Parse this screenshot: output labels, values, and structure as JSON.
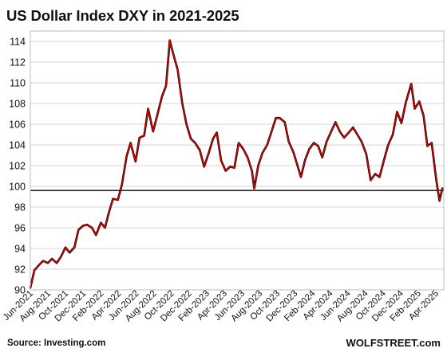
{
  "title": "US Dollar Index DXY in 2021-2025",
  "source": "Source: Investing.com",
  "brand": "WOLFSTREET.com",
  "chart_data": {
    "type": "line",
    "title": "US Dollar Index DXY in 2021-2025",
    "xlabel": "",
    "ylabel": "",
    "ylim": [
      90,
      115
    ],
    "yticks": [
      90,
      92,
      94,
      96,
      98,
      100,
      102,
      104,
      106,
      108,
      110,
      112,
      114
    ],
    "xtick_labels": [
      "Jun-2021",
      "Aug-2021",
      "Oct-2021",
      "Dec-2021",
      "Feb-2022",
      "Apr-2022",
      "Jun-2022",
      "Aug-2022",
      "Oct-2022",
      "Dec-2022",
      "Feb-2023",
      "Apr-2023",
      "Jun-2023",
      "Aug-2023",
      "Oct-2023",
      "Dec-2023",
      "Feb-2024",
      "Apr-2024",
      "Jun-2024",
      "Aug-2024",
      "Oct-2024",
      "Dec-2024",
      "Feb-2025",
      "Apr-2025"
    ],
    "grid": true,
    "line_color": "#e00000",
    "reference_line": 99.6,
    "series": [
      {
        "x": [
          "2021-06-01",
          "2021-06-15",
          "2021-07-01",
          "2021-07-15",
          "2021-08-01",
          "2021-08-15",
          "2021-09-01",
          "2021-09-15",
          "2021-10-01",
          "2021-10-15",
          "2021-11-01",
          "2021-11-15",
          "2021-12-01",
          "2021-12-15",
          "2022-01-01",
          "2022-01-15",
          "2022-02-01",
          "2022-02-15",
          "2022-03-01",
          "2022-03-15",
          "2022-04-01",
          "2022-04-15",
          "2022-05-01",
          "2022-05-15",
          "2022-06-01",
          "2022-06-15",
          "2022-07-01",
          "2022-07-15",
          "2022-08-01",
          "2022-08-15",
          "2022-09-01",
          "2022-09-15",
          "2022-09-28",
          "2022-10-10",
          "2022-10-25",
          "2022-11-10",
          "2022-11-25",
          "2022-12-10",
          "2022-12-25",
          "2023-01-10",
          "2023-01-25",
          "2023-02-10",
          "2023-02-25",
          "2023-03-10",
          "2023-03-25",
          "2023-04-10",
          "2023-04-25",
          "2023-05-10",
          "2023-05-25",
          "2023-06-10",
          "2023-06-25",
          "2023-07-10",
          "2023-07-18",
          "2023-08-01",
          "2023-08-15",
          "2023-09-01",
          "2023-09-15",
          "2023-10-01",
          "2023-10-15",
          "2023-11-01",
          "2023-11-15",
          "2023-12-01",
          "2023-12-27",
          "2024-01-10",
          "2024-01-25",
          "2024-02-10",
          "2024-02-25",
          "2024-03-10",
          "2024-03-25",
          "2024-04-10",
          "2024-04-25",
          "2024-05-10",
          "2024-05-25",
          "2024-06-10",
          "2024-06-25",
          "2024-07-10",
          "2024-07-25",
          "2024-08-10",
          "2024-08-25",
          "2024-09-10",
          "2024-09-25",
          "2024-10-10",
          "2024-10-25",
          "2024-11-10",
          "2024-11-25",
          "2024-12-10",
          "2024-12-25",
          "2025-01-13",
          "2025-01-25",
          "2025-02-10",
          "2025-02-25",
          "2025-03-10",
          "2025-03-25",
          "2025-04-10",
          "2025-04-21",
          "2025-05-01"
        ],
        "values": [
          90.2,
          91.9,
          92.4,
          92.8,
          92.6,
          93.0,
          92.6,
          93.2,
          94.1,
          93.6,
          94.1,
          95.8,
          96.2,
          96.3,
          96.0,
          95.3,
          96.5,
          96.0,
          97.5,
          98.8,
          98.7,
          100.2,
          102.9,
          104.2,
          102.4,
          104.7,
          104.9,
          107.5,
          105.3,
          106.8,
          108.7,
          109.7,
          114.1,
          112.8,
          111.3,
          108.1,
          106.0,
          104.6,
          104.2,
          103.5,
          101.9,
          103.2,
          104.6,
          105.2,
          102.5,
          101.5,
          101.9,
          101.8,
          104.2,
          103.6,
          102.8,
          101.5,
          99.8,
          102.0,
          103.2,
          104.0,
          105.2,
          106.6,
          106.6,
          106.2,
          104.3,
          103.3,
          100.9,
          102.5,
          103.6,
          104.2,
          103.9,
          102.8,
          104.3,
          105.3,
          106.2,
          105.3,
          104.7,
          105.2,
          105.7,
          105.0,
          104.3,
          103.1,
          100.6,
          101.2,
          100.9,
          102.5,
          104.0,
          105.0,
          107.2,
          106.1,
          108.1,
          109.9,
          107.5,
          108.2,
          106.8,
          103.9,
          104.2,
          100.6,
          98.6,
          99.8
        ]
      }
    ]
  }
}
